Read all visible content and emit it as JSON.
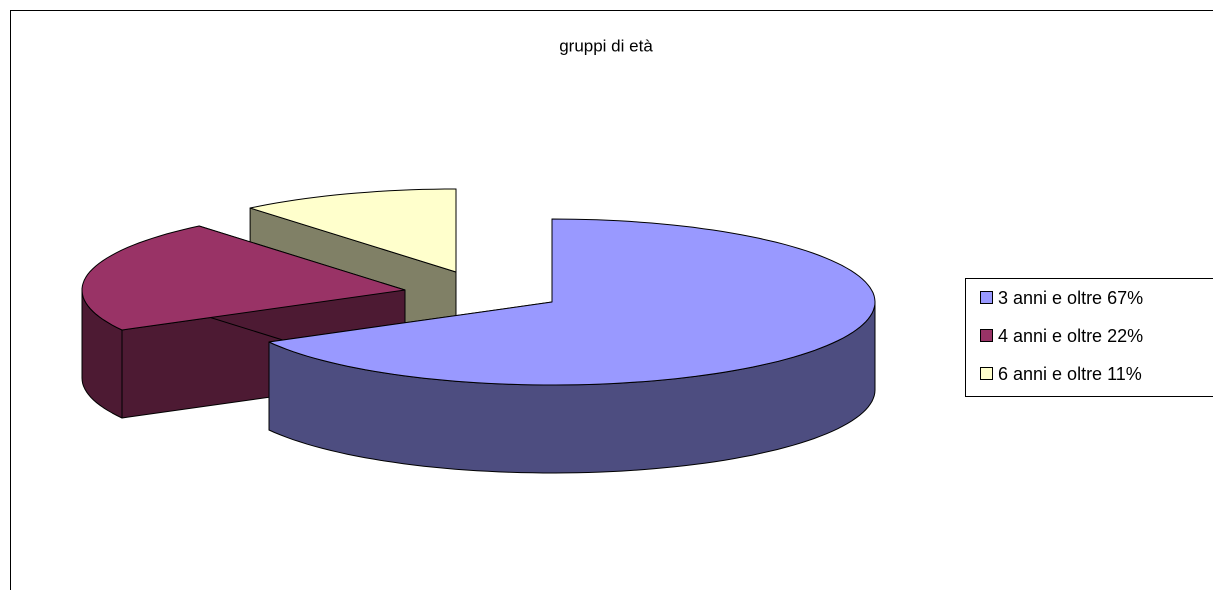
{
  "chart_data": {
    "type": "pie3d",
    "title": "gruppi di età",
    "categories": [
      "3 anni e oltre 67%",
      "4 anni e oltre 22%",
      "6 anni e oltre 11%"
    ],
    "values": [
      67,
      22,
      11
    ],
    "colors": [
      "#9999ff",
      "#993366",
      "#ffffcc"
    ],
    "side_colors": [
      "#4d4d80",
      "#4d1a33",
      "#808066"
    ],
    "legend": "right"
  }
}
